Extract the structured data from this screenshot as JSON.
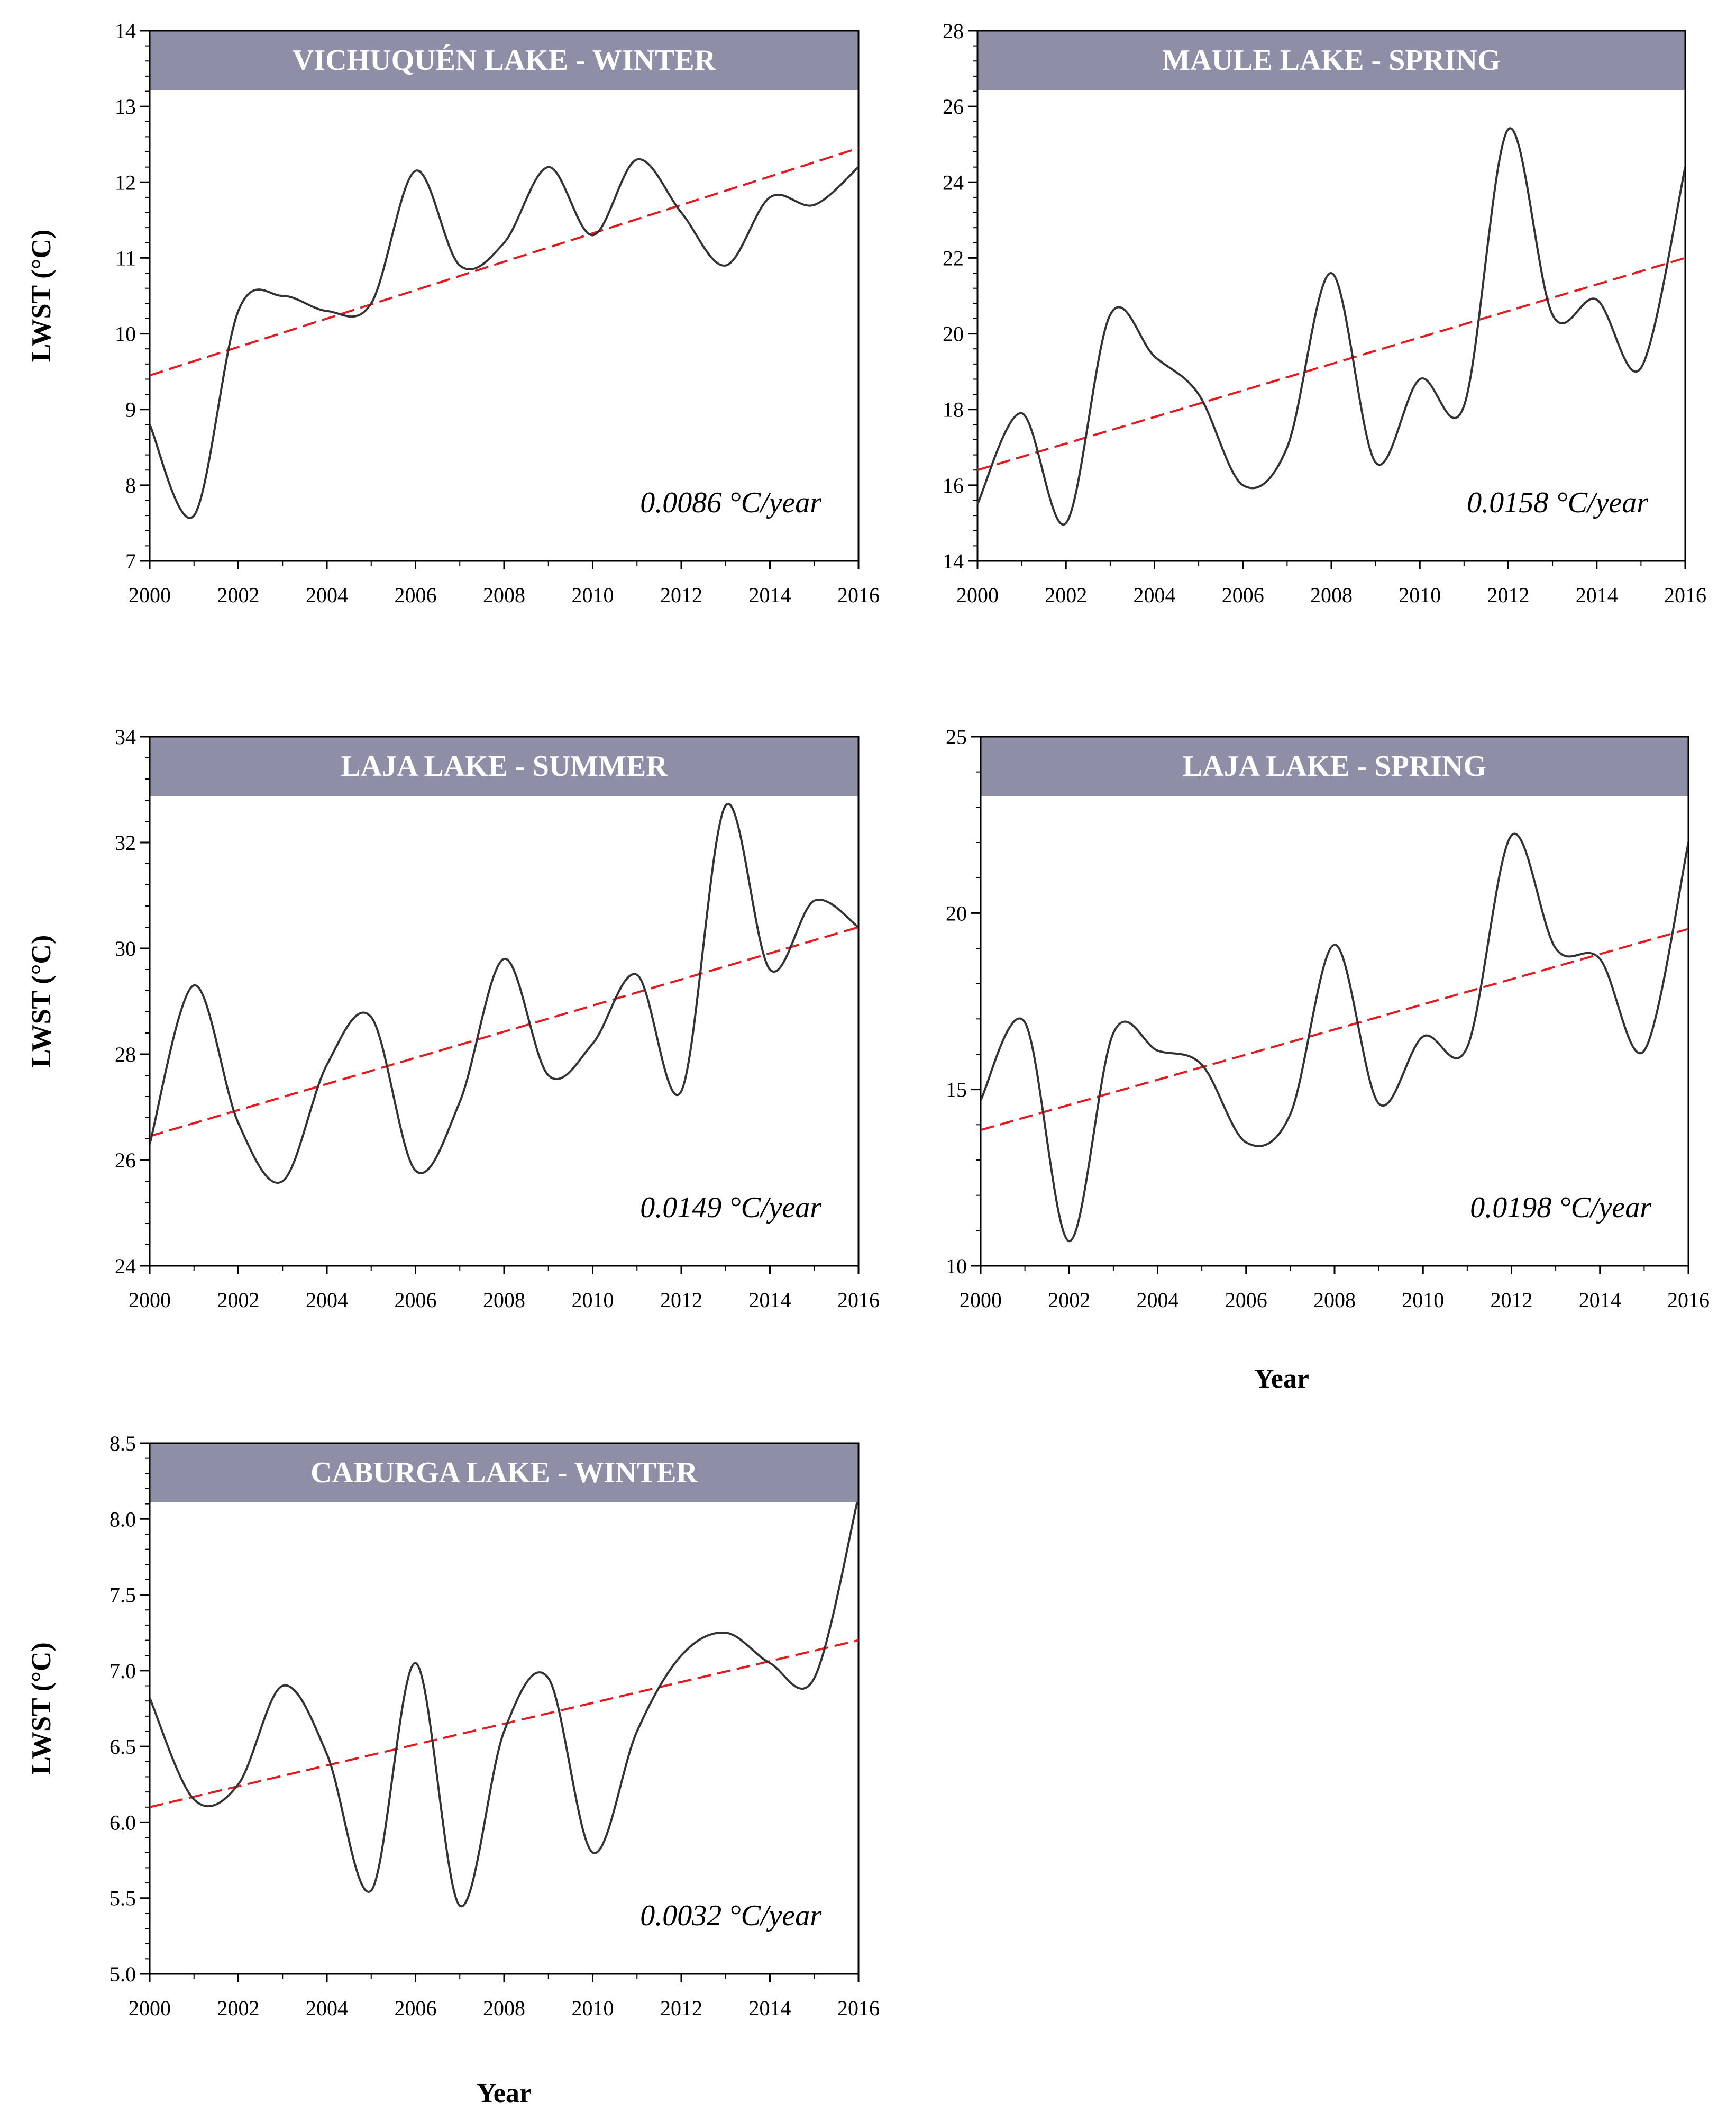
{
  "colors": {
    "title_band": "#8e8ea7",
    "series_line": "#333333",
    "trend_line": "#e8191e",
    "axis": "#000000"
  },
  "chart_data": [
    {
      "type": "line",
      "title": "VICHUQUÉN LAKE - WINTER",
      "ylabel": "LWST (°C)",
      "xlabel": "",
      "annotation": "0.0086 °C/year",
      "xlim": [
        2000,
        2016
      ],
      "ylim": [
        7,
        14
      ],
      "xticks": [
        "2000",
        "2002",
        "2004",
        "2006",
        "2008",
        "2010",
        "2012",
        "2014",
        "2016"
      ],
      "yticks": [
        "7",
        "8",
        "9",
        "10",
        "11",
        "12",
        "13",
        "14"
      ],
      "x": [
        2000,
        2001,
        2002,
        2003,
        2004,
        2005,
        2006,
        2007,
        2008,
        2009,
        2010,
        2011,
        2012,
        2013,
        2014,
        2015,
        2016
      ],
      "y": [
        8.8,
        7.6,
        10.3,
        10.5,
        10.3,
        10.4,
        12.15,
        10.9,
        11.2,
        12.2,
        11.3,
        12.3,
        11.6,
        10.9,
        11.8,
        11.7,
        12.2
      ],
      "trend": [
        9.45,
        12.45
      ],
      "grid": false
    },
    {
      "type": "line",
      "title": "MAULE LAKE - SPRING",
      "ylabel": "",
      "xlabel": "",
      "annotation": "0.0158 °C/year",
      "xlim": [
        2000,
        2016
      ],
      "ylim": [
        14,
        28
      ],
      "xticks": [
        "2000",
        "2002",
        "2004",
        "2006",
        "2008",
        "2010",
        "2012",
        "2014",
        "2016"
      ],
      "yticks": [
        "14",
        "16",
        "18",
        "20",
        "22",
        "24",
        "26",
        "28"
      ],
      "x": [
        2000,
        2001,
        2002,
        2003,
        2004,
        2005,
        2006,
        2007,
        2008,
        2009,
        2010,
        2011,
        2012,
        2013,
        2014,
        2015,
        2016
      ],
      "y": [
        15.5,
        17.9,
        15.0,
        20.5,
        19.4,
        18.4,
        16.0,
        17.0,
        21.6,
        16.6,
        18.8,
        18.1,
        25.4,
        20.5,
        20.9,
        19.1,
        24.4
      ],
      "trend": [
        16.4,
        22.0
      ],
      "grid": false
    },
    {
      "type": "line",
      "title": "LAJA LAKE - SUMMER",
      "ylabel": "LWST (°C)",
      "xlabel": "",
      "annotation": "0.0149 °C/year",
      "xlim": [
        2000,
        2016
      ],
      "ylim": [
        24,
        34
      ],
      "xticks": [
        "2000",
        "2002",
        "2004",
        "2006",
        "2008",
        "2010",
        "2012",
        "2014",
        "2016"
      ],
      "yticks": [
        "24",
        "26",
        "28",
        "30",
        "32",
        "34"
      ],
      "x": [
        2000,
        2001,
        2002,
        2003,
        2004,
        2005,
        2006,
        2007,
        2008,
        2009,
        2010,
        2011,
        2012,
        2013,
        2014,
        2015,
        2016
      ],
      "y": [
        26.3,
        29.3,
        26.7,
        25.6,
        27.8,
        28.7,
        25.8,
        27.1,
        29.8,
        27.6,
        28.2,
        29.5,
        27.3,
        32.7,
        29.6,
        30.9,
        30.4
      ],
      "trend": [
        26.45,
        30.4
      ],
      "grid": false
    },
    {
      "type": "line",
      "title": "LAJA LAKE - SPRING",
      "ylabel": "",
      "xlabel": "Year",
      "annotation": "0.0198 °C/year",
      "xlim": [
        2000,
        2016
      ],
      "ylim": [
        10,
        25
      ],
      "xticks": [
        "2000",
        "2002",
        "2004",
        "2006",
        "2008",
        "2010",
        "2012",
        "2014",
        "2016"
      ],
      "yticks": [
        "10",
        "15",
        "20",
        "25"
      ],
      "x": [
        2000,
        2001,
        2002,
        2003,
        2004,
        2005,
        2006,
        2007,
        2008,
        2009,
        2010,
        2011,
        2012,
        2013,
        2014,
        2015,
        2016
      ],
      "y": [
        14.7,
        16.9,
        10.7,
        16.6,
        16.1,
        15.7,
        13.5,
        14.3,
        19.1,
        14.6,
        16.5,
        16.2,
        22.2,
        19.0,
        18.7,
        16.1,
        22.0
      ],
      "trend": [
        13.85,
        19.55
      ],
      "grid": false
    },
    {
      "type": "line",
      "title": "CABURGA LAKE - WINTER",
      "ylabel": "LWST (°C)",
      "xlabel": "Year",
      "annotation": "0.0032 °C/year",
      "xlim": [
        2000,
        2016
      ],
      "ylim": [
        5.0,
        8.5
      ],
      "xticks": [
        "2000",
        "2002",
        "2004",
        "2006",
        "2008",
        "2010",
        "2012",
        "2014",
        "2016"
      ],
      "yticks": [
        "5.0",
        "5.5",
        "6.0",
        "6.5",
        "7.0",
        "7.5",
        "8.0",
        "8.5"
      ],
      "x": [
        2000,
        2001,
        2002,
        2003,
        2004,
        2005,
        2006,
        2007,
        2008,
        2009,
        2010,
        2011,
        2012,
        2013,
        2014,
        2015,
        2016
      ],
      "y": [
        6.82,
        6.15,
        6.25,
        6.9,
        6.45,
        5.55,
        7.05,
        5.45,
        6.6,
        6.95,
        5.8,
        6.6,
        7.1,
        7.25,
        7.05,
        6.95,
        8.15
      ],
      "trend": [
        6.1,
        7.2
      ],
      "grid": false
    }
  ]
}
